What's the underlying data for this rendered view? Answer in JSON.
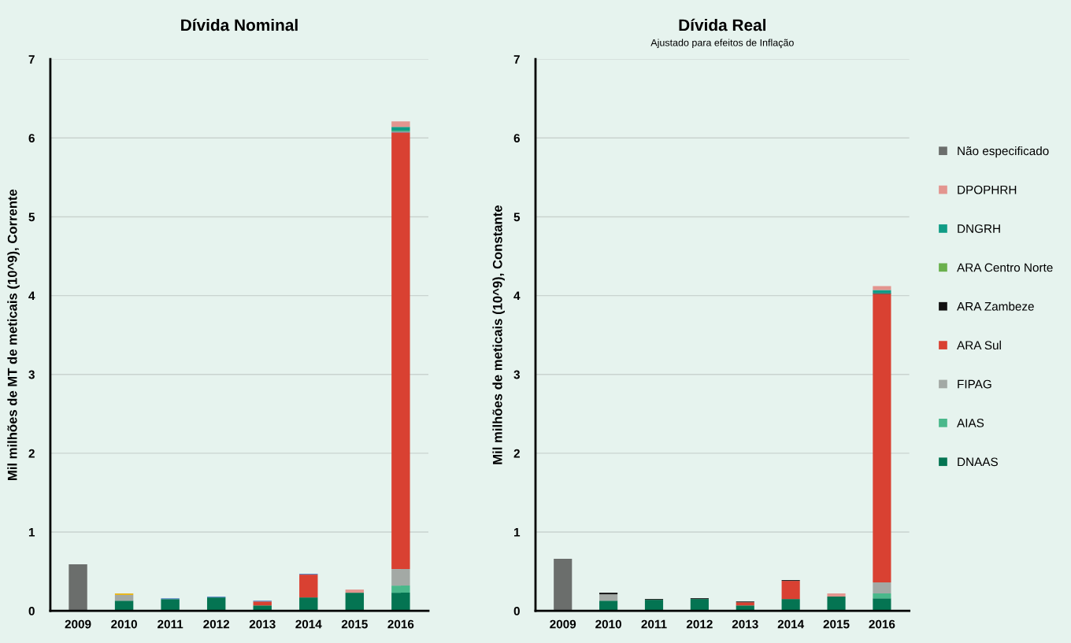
{
  "chart_data": [
    {
      "type": "bar",
      "stacked": true,
      "title": "Dívida Nominal",
      "ylabel": "Mil milhões de MT de meticais (10^9), Corrente",
      "categories": [
        "2009",
        "2010",
        "2011",
        "2012",
        "2013",
        "2014",
        "2015",
        "2016"
      ],
      "ylim": [
        0,
        7
      ],
      "yticks": [
        0,
        1,
        2,
        3,
        4,
        5,
        6,
        7
      ],
      "grid": "y",
      "legend": false,
      "series": [
        {
          "color": "#047452",
          "values": [
            null,
            0.13,
            0.15,
            0.17,
            0.07,
            0.17,
            0.23,
            0.23
          ]
        },
        {
          "color": "#4ab88b",
          "values": [
            null,
            null,
            null,
            null,
            null,
            null,
            null,
            0.09
          ]
        },
        {
          "color": "#a3a9a5",
          "values": [
            null,
            0.07,
            null,
            null,
            null,
            null,
            null,
            0.21
          ]
        },
        {
          "color": "#d94132",
          "values": [
            null,
            null,
            null,
            null,
            0.05,
            0.29,
            null,
            5.54
          ]
        },
        {
          "color": "#4a7cc0",
          "values": [
            null,
            null,
            0.01,
            0.01,
            0.01,
            0.01,
            null,
            0.01
          ]
        },
        {
          "color": "#e8b820",
          "values": [
            null,
            0.02,
            null,
            null,
            null,
            null,
            null,
            null
          ]
        },
        {
          "color": "#6ab04c",
          "values": [
            null,
            null,
            null,
            null,
            null,
            null,
            null,
            0.01
          ]
        },
        {
          "color": "#109c86",
          "values": [
            null,
            null,
            null,
            null,
            null,
            null,
            null,
            0.05
          ]
        },
        {
          "color": "#e3958f",
          "values": [
            null,
            null,
            null,
            null,
            null,
            null,
            0.04,
            0.07
          ]
        },
        {
          "color": "#6b6e6c",
          "values": [
            0.59,
            null,
            null,
            null,
            null,
            null,
            null,
            null
          ]
        }
      ]
    },
    {
      "type": "bar",
      "stacked": true,
      "title": "Dívida Real",
      "subtitle": "Ajustado para efeitos de Inflação",
      "ylabel": "Mil milhões de meticais (10^9), Constante",
      "categories": [
        "2009",
        "2010",
        "2011",
        "2012",
        "2013",
        "2014",
        "2015",
        "2016"
      ],
      "ylim": [
        0,
        7
      ],
      "yticks": [
        0,
        1,
        2,
        3,
        4,
        5,
        6,
        7
      ],
      "grid": "y",
      "legend": "right",
      "series": [
        {
          "name": "DNAAS",
          "color": "#047452",
          "values": [
            null,
            0.13,
            0.14,
            0.15,
            0.07,
            0.15,
            0.18,
            0.16
          ]
        },
        {
          "name": "AIAS",
          "color": "#4ab88b",
          "values": [
            null,
            null,
            null,
            null,
            null,
            null,
            null,
            0.06
          ]
        },
        {
          "name": "FIPAG",
          "color": "#a3a9a5",
          "values": [
            null,
            0.08,
            null,
            null,
            null,
            null,
            null,
            0.14
          ]
        },
        {
          "name": "ARA Sul",
          "color": "#d94132",
          "values": [
            null,
            null,
            null,
            null,
            0.04,
            0.23,
            null,
            3.66
          ]
        },
        {
          "name": "ARA Zambeze",
          "color": "#111111",
          "values": [
            null,
            0.02,
            0.01,
            0.01,
            0.01,
            0.01,
            null,
            0.01
          ]
        },
        {
          "name": "ARA Centro Norte",
          "color": "#6ab04c",
          "values": [
            null,
            null,
            null,
            null,
            null,
            null,
            null,
            null
          ]
        },
        {
          "name": "DNGRH",
          "color": "#109c86",
          "values": [
            null,
            null,
            null,
            null,
            null,
            null,
            null,
            0.04
          ]
        },
        {
          "name": "DPOPHRH",
          "color": "#e3958f",
          "values": [
            null,
            null,
            null,
            null,
            null,
            null,
            0.04,
            0.05
          ]
        },
        {
          "name": "Não especificado",
          "color": "#6b6e6c",
          "values": [
            0.66,
            null,
            null,
            null,
            null,
            null,
            null,
            null
          ]
        }
      ]
    }
  ]
}
